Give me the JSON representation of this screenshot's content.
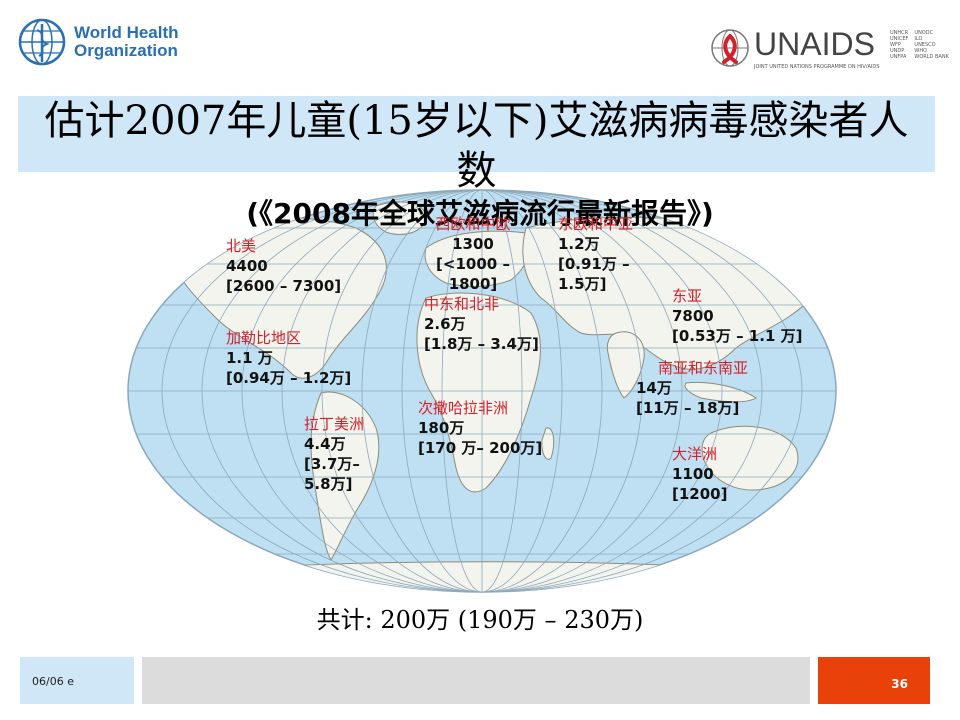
{
  "header": {
    "who_logo_text": [
      "World Health",
      "Organization"
    ],
    "unaids_logo_text": "UNAIDS",
    "unaids_tagline": "JOINT UNITED NATIONS PROGRAMME ON HIV/AIDS",
    "unaids_partners": [
      "UNHCR",
      "UNICEF",
      "WFP",
      "UNDP",
      "UNFPA",
      "UNODC",
      "ILO",
      "UNESCO",
      "WHO",
      "WORLD BANK"
    ]
  },
  "slide": {
    "title_line1": "估计2007年儿童(15岁以下)艾滋病病毒感染者人",
    "title_line2": "数",
    "subtitle": "(《2008年全球艾滋病流行最新报告》)",
    "total": "共计: 200万 (190万 – 230万)"
  },
  "regions": {
    "north_america": {
      "name": "北美",
      "value": "4400",
      "range": "[2600 – 7300]"
    },
    "caribbean": {
      "name": "加勒比地区",
      "value": "1.1 万",
      "range": "[0.94万 – 1.2万]"
    },
    "latin_america": {
      "name": "拉丁美洲",
      "value": "4.4万",
      "range1": "[3.7万–",
      "range2": "5.8万]"
    },
    "western_central_europe": {
      "name": "西欧和中欧",
      "value": "1300",
      "range1": "[<1000 –",
      "range2": "1800]"
    },
    "eastern_europe_central_asia": {
      "name": "东欧和中亚",
      "value": "1.2万",
      "range1": "[0.91万 –",
      "range2": "1.5万]"
    },
    "middle_east_north_africa": {
      "name": "中东和北非",
      "value": "2.6万",
      "range": "[1.8万 – 3.4万]"
    },
    "east_asia": {
      "name": "东亚",
      "value": "7800",
      "range": "[0.53万 – 1.1 万]"
    },
    "south_southeast_asia": {
      "name": "南亚和东南亚",
      "value": "14万",
      "range": "[11万 – 18万]"
    },
    "sub_saharan_africa": {
      "name": "次撒哈拉非洲",
      "value": "180万",
      "range": "[170 万– 200万]"
    },
    "oceania": {
      "name": "大洋洲",
      "value": "1100",
      "range": "[1200]"
    }
  },
  "footer": {
    "date": "06/06  e",
    "page_number": "36"
  },
  "colors": {
    "title_band": "#cfe7f6",
    "ocean": "#bfe0f2",
    "land": "#f4f4ee",
    "region_name": "#d4202a",
    "footer_accent": "#e8410a"
  }
}
